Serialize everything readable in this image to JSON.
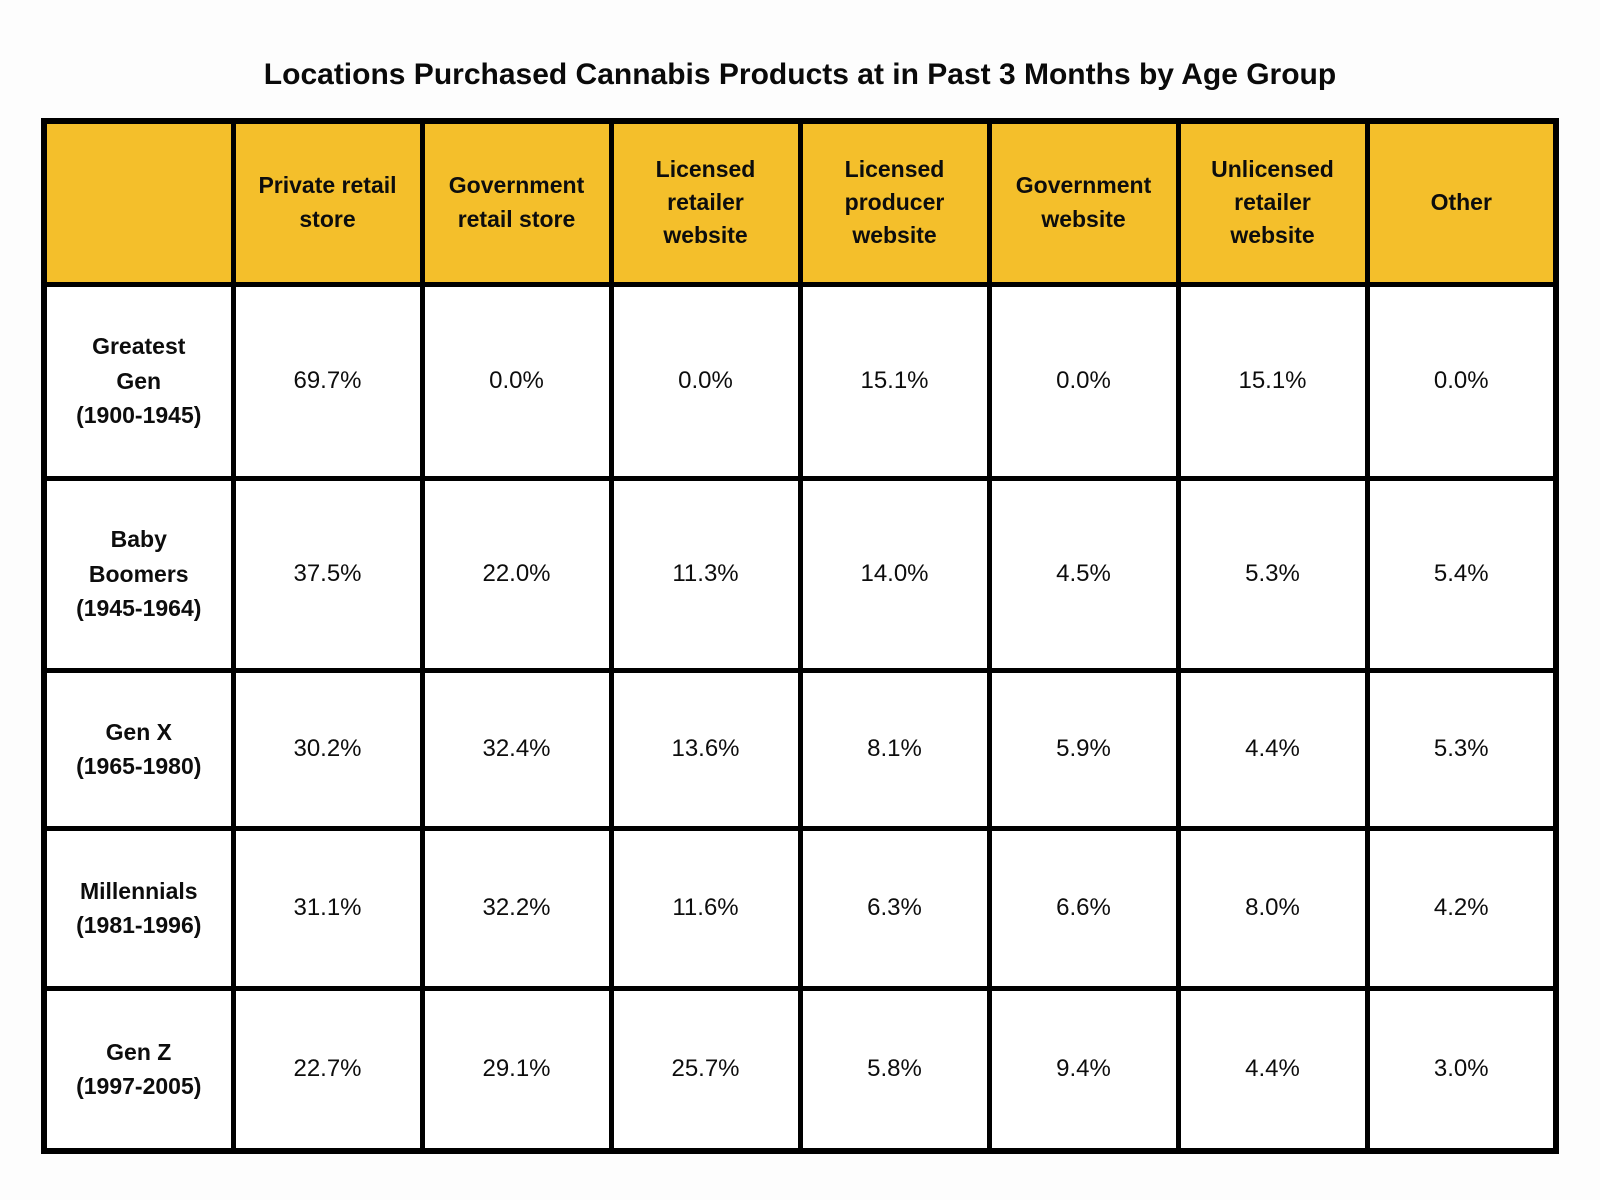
{
  "title": "Locations Purchased Cannabis Products at in Past 3 Months by Age Group",
  "colors": {
    "header_bg": "#F4BF2B",
    "border": "#000000",
    "cell_bg": "#FFFFFF",
    "text": "#0D0D0D"
  },
  "table": {
    "columns": [
      "Private retail store",
      "Government retail store",
      "Licensed retailer website",
      "Licensed producer website",
      "Government website",
      "Unlicensed retailer website",
      "Other"
    ],
    "rows": [
      {
        "group": "Greatest Gen",
        "years": "(1900-1945)",
        "values": [
          "69.7%",
          "0.0%",
          "0.0%",
          "15.1%",
          "0.0%",
          "15.1%",
          "0.0%"
        ]
      },
      {
        "group": "Baby Boomers",
        "years": "(1945-1964)",
        "values": [
          "37.5%",
          "22.0%",
          "11.3%",
          "14.0%",
          "4.5%",
          "5.3%",
          "5.4%"
        ]
      },
      {
        "group": "Gen X",
        "years": "(1965-1980)",
        "values": [
          "30.2%",
          "32.4%",
          "13.6%",
          "8.1%",
          "5.9%",
          "4.4%",
          "5.3%"
        ]
      },
      {
        "group": "Millennials",
        "years": "(1981-1996)",
        "values": [
          "31.1%",
          "32.2%",
          "11.6%",
          "6.3%",
          "6.6%",
          "8.0%",
          "4.2%"
        ]
      },
      {
        "group": "Gen Z",
        "years": "(1997-2005)",
        "values": [
          "22.7%",
          "29.1%",
          "25.7%",
          "5.8%",
          "9.4%",
          "4.4%",
          "3.0%"
        ]
      }
    ]
  },
  "chart_data": {
    "type": "table",
    "title": "Locations Purchased Cannabis Products at in Past 3 Months by Age Group",
    "columns": [
      "Private retail store",
      "Government retail store",
      "Licensed retailer website",
      "Licensed producer website",
      "Government website",
      "Unlicensed retailer website",
      "Other"
    ],
    "row_groups": [
      "Greatest Gen (1900-1945)",
      "Baby Boomers (1945-1964)",
      "Gen X (1965-1980)",
      "Millennials (1981-1996)",
      "Gen Z (1997-2005)"
    ],
    "values_percent": [
      [
        69.7,
        0.0,
        0.0,
        15.1,
        0.0,
        15.1,
        0.0
      ],
      [
        37.5,
        22.0,
        11.3,
        14.0,
        4.5,
        5.3,
        5.4
      ],
      [
        30.2,
        32.4,
        13.6,
        8.1,
        5.9,
        4.4,
        5.3
      ],
      [
        31.1,
        32.2,
        11.6,
        6.3,
        6.6,
        8.0,
        4.2
      ],
      [
        22.7,
        29.1,
        25.7,
        5.8,
        9.4,
        4.4,
        3.0
      ]
    ],
    "units": "%",
    "header_style": "yellow-fill-bold",
    "grid": "thick-black-borders"
  }
}
